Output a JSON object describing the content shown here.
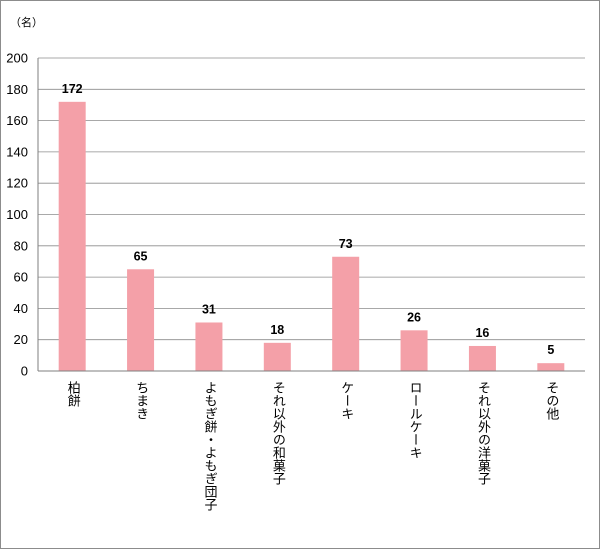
{
  "chart_data": {
    "type": "bar",
    "unit_label": "（名）",
    "categories": [
      "柏餅",
      "ちまき",
      "よもぎ餅・よもぎ団子",
      "それ以外の和菓子",
      "ケーキ",
      "ロールケーキ",
      "それ以外の洋菓子",
      "その他"
    ],
    "values": [
      172,
      65,
      31,
      18,
      73,
      26,
      16,
      5
    ],
    "data_labels": [
      "172",
      "65",
      "31",
      "18",
      "73",
      "26",
      "16",
      "5"
    ],
    "ylim": [
      0,
      200
    ],
    "yticks": [
      0,
      20,
      40,
      60,
      80,
      100,
      120,
      140,
      160,
      180,
      200
    ],
    "grid": true,
    "bar_color": "#f4a0a8",
    "legend": "none"
  }
}
